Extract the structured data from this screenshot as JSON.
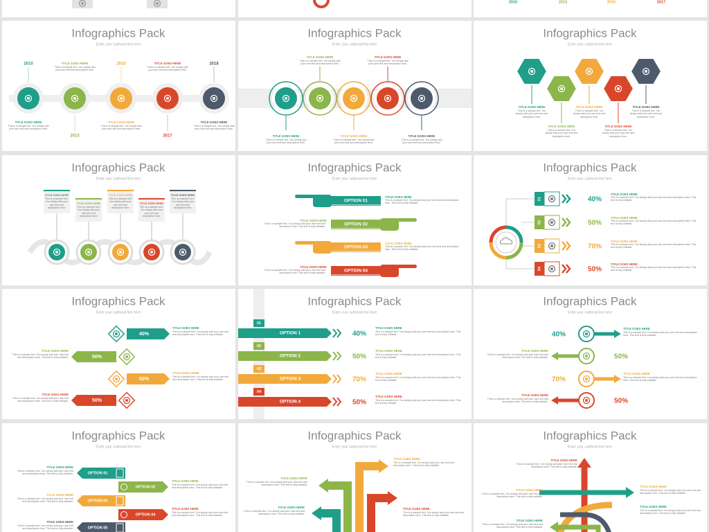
{
  "top": {
    "years": [
      "2010",
      "2013",
      "2016",
      "2017"
    ]
  },
  "slides": [
    {
      "layout": "timeline",
      "title": "Infographics Pack",
      "subtitle": "Enter your subhead line here",
      "items": [
        {
          "year": "2010",
          "title": "TITLE GOES HERE",
          "text": "This is a sample text. You simply add your own text and description here."
        },
        {
          "year": "2013",
          "title": "TITLE GOES HERE",
          "text": "This is a sample text. You simply add your own text and description here."
        },
        {
          "year": "2016",
          "title": "TITLE GOES HERE",
          "text": "This is a sample text. You simply add your own text and description here."
        },
        {
          "year": "2017",
          "title": "TITLE GOES HERE",
          "text": "This is a sample text. You simply add your own text and description here."
        },
        {
          "year": "2018",
          "title": "TITLE GOES HERE",
          "text": "This is a sample text. You simply add your own text and description here."
        }
      ]
    },
    {
      "layout": "circles",
      "title": "Infographics Pack",
      "subtitle": "Enter your subhead line here",
      "items": [
        {
          "title": "TITLE GOES HERE",
          "text": "This is a sample text. You simply add your own text and description here."
        },
        {
          "title": "TITLE GOES HERE",
          "text": "This is a sample text. You simply add your own text and description here."
        },
        {
          "title": "TITLE GOES HERE",
          "text": "This is a sample text. You simply add your own text and description here."
        },
        {
          "title": "TITLE GOES HERE",
          "text": "This is a sample text. You simply add your own text and description here."
        },
        {
          "title": "TITLE GOES HERE",
          "text": "This is a sample text. You simply add your own text and description here."
        }
      ]
    },
    {
      "layout": "hexagons",
      "title": "Infographics Pack",
      "subtitle": "Enter your subhead line here",
      "items": [
        {
          "title": "TITLE GOES HERE",
          "text": "This is a sample text. You simply add your own text and description here."
        },
        {
          "title": "TITLE GOES HERE",
          "text": "This is a sample text. You simply add your own text and description here."
        },
        {
          "title": "TITLE GOES HERE",
          "text": "This is a sample text. You simply add your own text and description here."
        },
        {
          "title": "TITLE GOES HERE",
          "text": "This is a sample text. You simply add your own text and description here."
        },
        {
          "title": "TITLE GOES HERE",
          "text": "This is a sample text. You simply add your own text and description here."
        }
      ]
    },
    {
      "layout": "boxes",
      "title": "Infographics Pack",
      "subtitle": "Enter your subhead line here",
      "items": [
        {
          "title": "TITLE GOES HERE",
          "text": "This is a sample text. You simply add your own text and description here."
        },
        {
          "title": "TITLE GOES HERE",
          "text": "This is a sample text. You simply add your own text and description here."
        },
        {
          "title": "TITLE GOES HERE",
          "text": "This is a sample text. You simply add your own text and description here."
        },
        {
          "title": "TITLE GOES HERE",
          "text": "This is a sample text. You simply add your own text and description here."
        },
        {
          "title": "TITLE GOES HERE",
          "text": "This is a sample text. You simply add your own text and description here."
        }
      ]
    },
    {
      "layout": "hands",
      "title": "Infographics Pack",
      "subtitle": "Enter your subhead line here",
      "items": [
        {
          "option": "OPTION 01",
          "title": "TITLE GOES HERE",
          "text": "This is a sample text. You simply add your own text and description here. This text is fully editable."
        },
        {
          "option": "OPTION 02",
          "title": "TITLE GOES HERE",
          "text": "This is a sample text. You simply add your own text and description here. This text is fully editable."
        },
        {
          "option": "OPTION 03",
          "title": "TITLE GOES HERE",
          "text": "This is a sample text. You simply add your own text and description here. This text is fully editable."
        },
        {
          "option": "OPTION 04",
          "title": "TITLE GOES HERE",
          "text": "This is a sample text. You simply add your own text and description here. This text is fully editable."
        }
      ]
    },
    {
      "layout": "cloud",
      "title": "Infographics Pack",
      "subtitle": "Enter your subhead line here",
      "items": [
        {
          "number": "01",
          "percent": "40%",
          "title": "TITLE GOES HERE",
          "text": "This is a sample text. You simply add your own text and description here. This text is fully editable."
        },
        {
          "number": "02",
          "percent": "50%",
          "title": "TITLE GOES HERE",
          "text": "This is a sample text. You simply add your own text and description here. This text is fully editable."
        },
        {
          "number": "03",
          "percent": "70%",
          "title": "TITLE GOES HERE",
          "text": "This is a sample text. You simply add your own text and description here. This text is fully editable."
        },
        {
          "number": "04",
          "percent": "50%",
          "title": "TITLE GOES HERE",
          "text": "This is a sample text. You simply add your own text and description here. This text is fully editable."
        }
      ]
    },
    {
      "layout": "arrows",
      "title": "Infographics Pack",
      "subtitle": "Enter your subhead line here",
      "items": [
        {
          "percent": "40%",
          "title": "TITLE GOES HERE",
          "text": "This is a sample text. You simply add your own text and description here. This text is fully editable."
        },
        {
          "percent": "50%",
          "title": "TITLE GOES HERE",
          "text": "This is a sample text. You simply add your own text and description here. This text is fully editable."
        },
        {
          "percent": "50%",
          "title": "TITLE GOES HERE",
          "text": "This is a sample text. You simply add your own text and description here. This text is fully editable."
        },
        {
          "percent": "50%",
          "title": "TITLE GOES HERE",
          "text": "This is a sample text. You simply add your own text and description here. This text is fully editable."
        }
      ]
    },
    {
      "layout": "options",
      "title": "Infographics Pack",
      "subtitle": "Enter your subhead line here",
      "items": [
        {
          "number": "01",
          "option": "OPTION 1",
          "percent": "40%",
          "title": "TITLE GOES HERE",
          "text": "This is a sample text. You simply add your own text and description here. This text is fully editable."
        },
        {
          "number": "02",
          "option": "OPTION 2",
          "percent": "50%",
          "title": "TITLE GOES HERE",
          "text": "This is a sample text. You simply add your own text and description here. This text is fully editable."
        },
        {
          "number": "03",
          "option": "OPTION 3",
          "percent": "70%",
          "title": "TITLE GOES HERE",
          "text": "This is a sample text. You simply add your own text and description here. This text is fully editable."
        },
        {
          "number": "04",
          "option": "OPTION 4",
          "percent": "50%",
          "title": "TITLE GOES HERE",
          "text": "This is a sample text. You simply add your own text and description here. This text is fully editable."
        }
      ]
    },
    {
      "layout": "percents",
      "title": "Infographics Pack",
      "subtitle": "Enter your subhead line here",
      "items": [
        {
          "percent": "40%",
          "title": "TITLE GOES HERE",
          "text": "This is a sample text. You simply add your own text and description here. This text is fully editable."
        },
        {
          "percent": "50%",
          "title": "TITLE GOES HERE",
          "text": "This is a sample text. You simply add your own text and description here. This text is fully editable."
        },
        {
          "percent": "70%",
          "title": "TITLE GOES HERE",
          "text": "This is a sample text. You simply add your own text and description here. This text is fully editable."
        },
        {
          "percent": "50%",
          "title": "TITLE GOES HERE",
          "text": "This is a sample text. You simply add your own text and description here. This text is fully editable."
        }
      ]
    },
    {
      "layout": "options5",
      "title": "Infographics Pack",
      "subtitle": "Enter your subhead line here",
      "items": [
        {
          "option": "OPTION 01",
          "title": "TITLE GOES HERE",
          "text": "This is a sample text. You simply add your own text and description here. This text is fully editable."
        },
        {
          "option": "OPTION 02",
          "title": "TITLE GOES HERE",
          "text": "This is a sample text. You simply add your own text and description here. This text is fully editable."
        },
        {
          "option": "OPTION 03",
          "title": "TITLE GOES HERE",
          "text": "This is a sample text. You simply add your own text and description here. This text is fully editable."
        },
        {
          "option": "OPTION 04",
          "title": "TITLE GOES HERE",
          "text": "This is a sample text. You simply add your own text and description here. This text is fully editable."
        },
        {
          "option": "OPTION 05",
          "title": "TITLE GOES HERE",
          "text": "This is a sample text. You simply add your own text and description here. This text is fully editable."
        }
      ]
    },
    {
      "layout": "rising",
      "title": "Infographics Pack",
      "subtitle": "Enter your subhead line here",
      "items": [
        {
          "title": "TITLE GOES HERE",
          "text": "This is a sample text. You simply add your own text and description here. This text is fully editable."
        },
        {
          "title": "TITLE GOES HERE",
          "text": "This is a sample text. You simply add your own text and description here. This text is fully editable."
        },
        {
          "title": "TITLE GOES HERE",
          "text": "This is a sample text. You simply add your own text and description here. This text is fully editable."
        },
        {
          "title": "TITLE GOES HERE",
          "text": "This is a sample text. You simply add your own text and description here. This text is fully editable."
        }
      ]
    },
    {
      "layout": "crossing",
      "title": "Infographics Pack",
      "subtitle": "Enter your subhead line here",
      "items": [
        {
          "title": "TITLE GOES HERE",
          "text": "This is a sample text. You simply add your own text and description here. This text is fully editable."
        },
        {
          "title": "TITLE GOES HERE",
          "text": "This is a sample text. You simply add your own text and description here. This text is fully editable."
        },
        {
          "title": "TITLE GOES HERE",
          "text": "This is a sample text. You simply add your own text and description here. This text is fully editable."
        },
        {
          "title": "TITLE GOES HERE",
          "text": "This is a sample text. You simply add your own text and description here. This text is fully editable."
        },
        {
          "title": "TITLE GOES HERE",
          "text": "This is a sample text. You simply add your own text and description here. This text is fully editable."
        }
      ]
    }
  ]
}
